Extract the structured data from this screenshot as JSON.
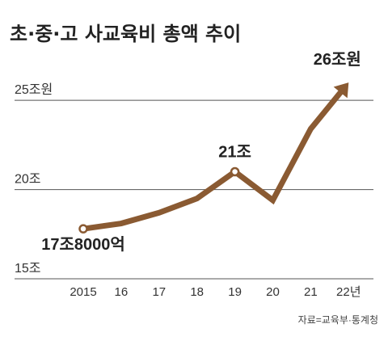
{
  "chart_data": {
    "type": "line",
    "title": "초·중·고 사교육비 총액 추이",
    "source": "자료=교육부·통계청",
    "x": [
      "2015",
      "16",
      "17",
      "18",
      "19",
      "20",
      "21",
      "22년"
    ],
    "series": [
      {
        "values": [
          17.8,
          18.1,
          18.7,
          19.5,
          21.0,
          19.4,
          23.4,
          26.0
        ],
        "color": "#8a5a32"
      }
    ],
    "y_ticks": [
      {
        "value": 25,
        "label": "25조원"
      },
      {
        "value": 20,
        "label": "20조"
      },
      {
        "value": 15,
        "label": "15조"
      }
    ],
    "ylim": [
      15,
      27
    ],
    "data_labels": [
      {
        "index": 0,
        "text": "17조8000억"
      },
      {
        "index": 4,
        "text": "21조"
      },
      {
        "index": 7,
        "text": "26조원"
      }
    ],
    "grid": "horizontal",
    "markers": "hollow circles on labeled points",
    "end_marker": "arrow"
  }
}
